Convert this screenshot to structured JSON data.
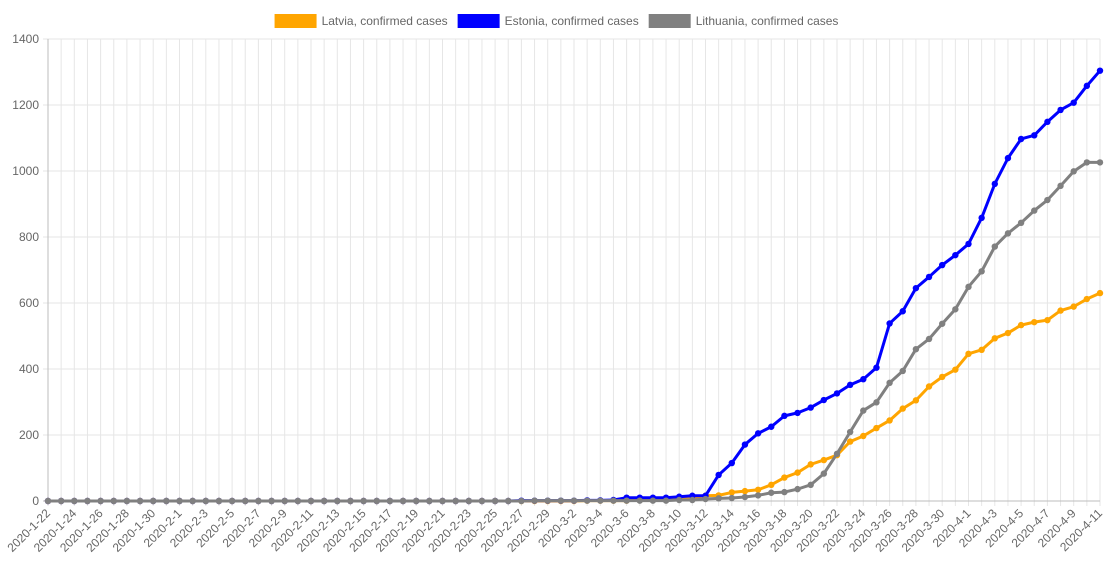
{
  "chart_data": {
    "type": "line",
    "categories": [
      "2020-1-22",
      "2020-1-23",
      "2020-1-24",
      "2020-1-25",
      "2020-1-26",
      "2020-1-27",
      "2020-1-28",
      "2020-1-29",
      "2020-1-30",
      "2020-1-31",
      "2020-2-1",
      "2020-2-2",
      "2020-2-3",
      "2020-2-4",
      "2020-2-5",
      "2020-2-6",
      "2020-2-7",
      "2020-2-8",
      "2020-2-9",
      "2020-2-10",
      "2020-2-11",
      "2020-2-12",
      "2020-2-13",
      "2020-2-14",
      "2020-2-15",
      "2020-2-16",
      "2020-2-17",
      "2020-2-18",
      "2020-2-19",
      "2020-2-20",
      "2020-2-21",
      "2020-2-22",
      "2020-2-23",
      "2020-2-24",
      "2020-2-25",
      "2020-2-26",
      "2020-2-27",
      "2020-2-28",
      "2020-2-29",
      "2020-3-1",
      "2020-3-2",
      "2020-3-3",
      "2020-3-4",
      "2020-3-5",
      "2020-3-6",
      "2020-3-7",
      "2020-3-8",
      "2020-3-9",
      "2020-3-10",
      "2020-3-11",
      "2020-3-12",
      "2020-3-13",
      "2020-3-14",
      "2020-3-15",
      "2020-3-16",
      "2020-3-17",
      "2020-3-18",
      "2020-3-19",
      "2020-3-20",
      "2020-3-21",
      "2020-3-22",
      "2020-3-23",
      "2020-3-24",
      "2020-3-25",
      "2020-3-26",
      "2020-3-27",
      "2020-3-28",
      "2020-3-29",
      "2020-3-30",
      "2020-3-31",
      "2020-4-1",
      "2020-4-2",
      "2020-4-3",
      "2020-4-4",
      "2020-4-5",
      "2020-4-6",
      "2020-4-7",
      "2020-4-8",
      "2020-4-9",
      "2020-4-10",
      "2020-4-11"
    ],
    "x_tick_labels": [
      "2020-1-22",
      "2020-1-24",
      "2020-1-26",
      "2020-1-28",
      "2020-1-30",
      "2020-2-1",
      "2020-2-3",
      "2020-2-5",
      "2020-2-7",
      "2020-2-9",
      "2020-2-11",
      "2020-2-13",
      "2020-2-15",
      "2020-2-17",
      "2020-2-19",
      "2020-2-21",
      "2020-2-23",
      "2020-2-25",
      "2020-2-27",
      "2020-2-29",
      "2020-3-2",
      "2020-3-4",
      "2020-3-6",
      "2020-3-8",
      "2020-3-10",
      "2020-3-12",
      "2020-3-14",
      "2020-3-16",
      "2020-3-18",
      "2020-3-20",
      "2020-3-22",
      "2020-3-24",
      "2020-3-26",
      "2020-3-28",
      "2020-3-30",
      "2020-4-1",
      "2020-4-3",
      "2020-4-5",
      "2020-4-7",
      "2020-4-9",
      "2020-4-11"
    ],
    "y_ticks": [
      0,
      200,
      400,
      600,
      800,
      1000,
      1200,
      1400
    ],
    "ylim": [
      0,
      1400
    ],
    "grid": true,
    "legend_position": "top",
    "series": [
      {
        "name": "Latvia, confirmed cases",
        "color": "#ffa500",
        "values": [
          0,
          0,
          0,
          0,
          0,
          0,
          0,
          0,
          0,
          0,
          0,
          0,
          0,
          0,
          0,
          0,
          0,
          0,
          0,
          0,
          0,
          0,
          0,
          0,
          0,
          0,
          0,
          0,
          0,
          0,
          0,
          0,
          0,
          0,
          0,
          0,
          0,
          0,
          0,
          0,
          0,
          1,
          1,
          1,
          1,
          2,
          3,
          6,
          8,
          10,
          16,
          17,
          26,
          30,
          34,
          49,
          71,
          86,
          111,
          124,
          139,
          180,
          197,
          221,
          244,
          280,
          305,
          347,
          376,
          398,
          446,
          458,
          493,
          509,
          533,
          542,
          548,
          577,
          589,
          612,
          630
        ]
      },
      {
        "name": "Estonia, confirmed cases",
        "color": "#0000ff",
        "values": [
          0,
          0,
          0,
          0,
          0,
          0,
          0,
          0,
          0,
          0,
          0,
          0,
          0,
          0,
          0,
          0,
          0,
          0,
          0,
          0,
          0,
          0,
          0,
          0,
          0,
          0,
          0,
          0,
          0,
          0,
          0,
          0,
          0,
          0,
          0,
          0,
          1,
          1,
          1,
          1,
          1,
          2,
          2,
          3,
          10,
          10,
          10,
          10,
          13,
          16,
          16,
          79,
          115,
          171,
          205,
          225,
          258,
          267,
          283,
          306,
          326,
          352,
          369,
          404,
          538,
          575,
          645,
          679,
          715,
          745,
          779,
          858,
          961,
          1039,
          1097,
          1108,
          1149,
          1185,
          1207,
          1258,
          1304
        ]
      },
      {
        "name": "Lithuania, confirmed cases",
        "color": "#808080",
        "values": [
          0,
          0,
          0,
          0,
          0,
          0,
          0,
          0,
          0,
          0,
          0,
          0,
          0,
          0,
          0,
          0,
          0,
          0,
          0,
          0,
          0,
          0,
          0,
          0,
          0,
          0,
          0,
          0,
          0,
          0,
          0,
          0,
          0,
          0,
          0,
          0,
          0,
          1,
          1,
          1,
          1,
          1,
          1,
          1,
          1,
          1,
          1,
          1,
          3,
          3,
          6,
          8,
          9,
          12,
          17,
          25,
          27,
          36,
          49,
          83,
          143,
          209,
          274,
          299,
          358,
          394,
          460,
          491,
          537,
          581,
          649,
          696,
          771,
          811,
          843,
          880,
          912,
          955,
          999,
          1026,
          1026
        ]
      }
    ]
  }
}
